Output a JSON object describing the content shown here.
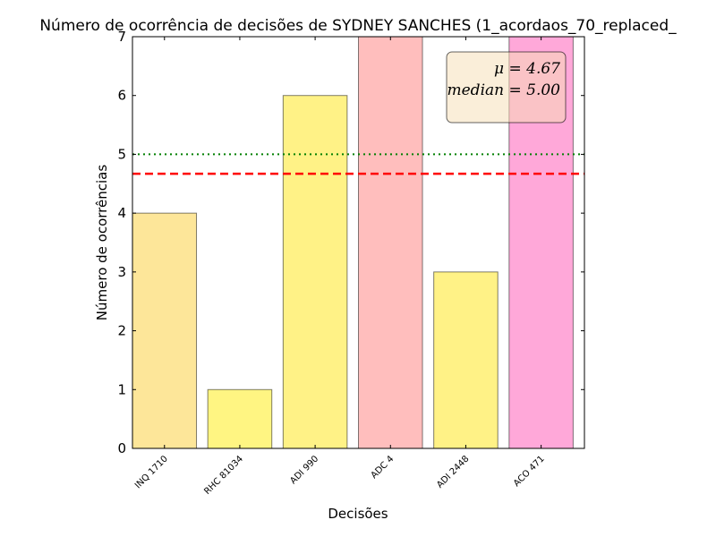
{
  "chart_data": {
    "type": "bar",
    "title": "Número de ocorrência de decisões de SYDNEY SANCHES (1_acordaos_70_replaced_",
    "xlabel": "Decisões",
    "ylabel": "Número de ocorrências",
    "categories": [
      "INQ 1710",
      "RHC 81034",
      "ADI 990",
      "ADC 4",
      "ADI 2448",
      "ACO 471"
    ],
    "values": [
      4,
      1,
      6,
      7,
      3,
      7
    ],
    "bar_colors": [
      "#fde699",
      "#fff582",
      "#fff286",
      "#ffbebd",
      "#fff286",
      "#ffa8d9"
    ],
    "ylim": [
      0,
      7
    ],
    "yticks": [
      "0",
      "1",
      "2",
      "3",
      "4",
      "5",
      "6",
      "7"
    ],
    "mean": 4.67,
    "median": 5.0,
    "mean_label": "μ = 4.67",
    "median_label": "median = 5.00",
    "mean_line_color": "#ff0000",
    "median_line_color": "#007f00",
    "legend_position": "top-right",
    "grid": false
  }
}
